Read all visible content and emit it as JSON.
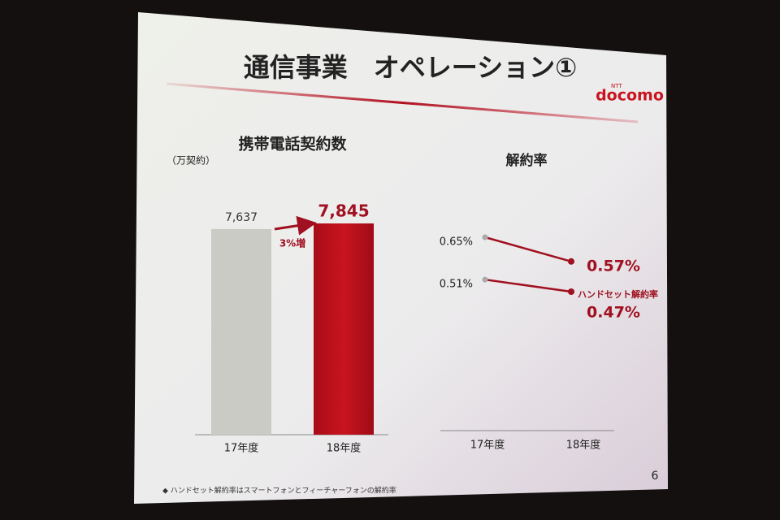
{
  "slide": {
    "title": "通信事業　オペレーション①",
    "logo_small": "NTT",
    "logo": "docomo",
    "footnote": "◆ ハンドセット解約率はスマートフォンとフィーチャーフォンの解約率",
    "page_number": "6"
  },
  "chart_data": [
    {
      "type": "bar",
      "title": "携帯電話契約数",
      "unit_label": "（万契約）",
      "categories": [
        "17年度",
        "18年度"
      ],
      "values": [
        7637,
        7845
      ],
      "value_labels": [
        "7,637",
        "7,845"
      ],
      "colors": [
        "#c9cbc4",
        "#b0101c"
      ],
      "annotation": "3%増"
    },
    {
      "type": "line",
      "title": "解約率",
      "categories": [
        "17年度",
        "18年度"
      ],
      "series": [
        {
          "color": "#a01020",
          "values": [
            0.65,
            0.57
          ],
          "value_labels": [
            "0.65%",
            "0.57%"
          ]
        },
        {
          "name": "ハンドセット解約率",
          "color": "#a01020",
          "values": [
            0.51,
            0.47
          ],
          "value_labels": [
            "0.51%",
            "0.47%"
          ]
        }
      ]
    }
  ]
}
